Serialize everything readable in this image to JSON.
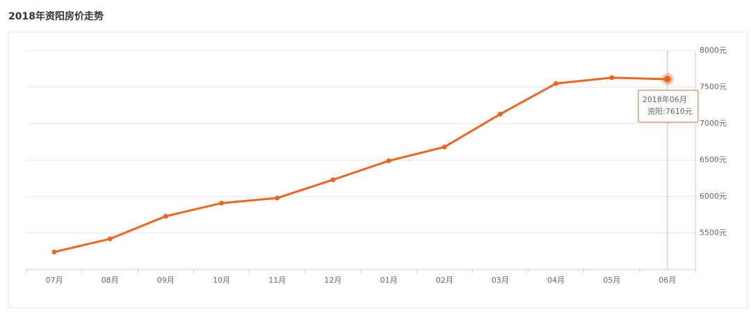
{
  "chart_data": {
    "type": "line",
    "title": "2018年资阳房价走势",
    "categories": [
      "07月",
      "08月",
      "09月",
      "10月",
      "11月",
      "12月",
      "01月",
      "02月",
      "03月",
      "04月",
      "05月",
      "06月"
    ],
    "series": [
      {
        "color": "#f0641e",
        "values": [
          5240,
          5420,
          5730,
          5910,
          5980,
          6230,
          6490,
          6680,
          7130,
          7550,
          7630,
          7610
        ]
      }
    ],
    "ylim": [
      5000,
      8000
    ],
    "yticks": [
      {
        "value": 5500,
        "label": "5500元"
      },
      {
        "value": 6000,
        "label": "6000元"
      },
      {
        "value": 6500,
        "label": "6500元"
      },
      {
        "value": 7000,
        "label": "7000元"
      },
      {
        "value": 7500,
        "label": "7500元"
      },
      {
        "value": 8000,
        "label": "8000元"
      }
    ],
    "grid": true,
    "tooltip": {
      "index": 11,
      "title": "2018年06月",
      "label": "资阳:7610元"
    }
  }
}
